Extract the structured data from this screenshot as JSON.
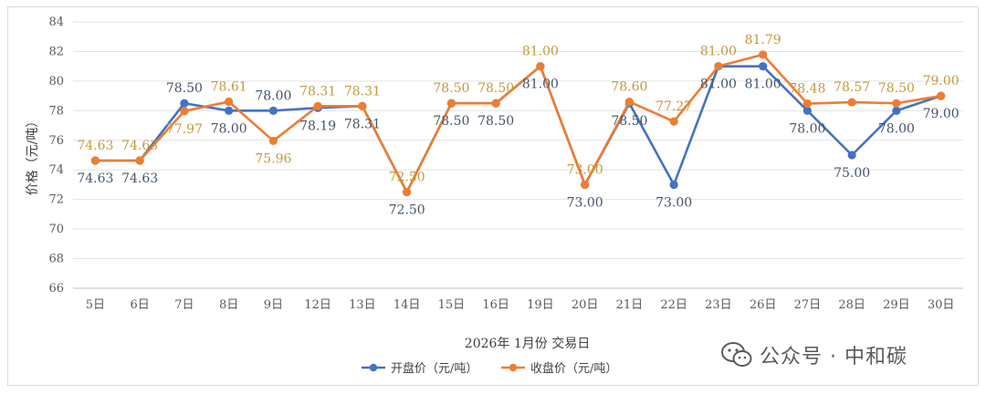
{
  "chart_data": {
    "type": "line",
    "title": "",
    "xlabel": "2026年 1月份 交易日",
    "ylabel": "价格（元/吨）",
    "ylim": [
      66,
      84
    ],
    "yticks": [
      66,
      68,
      70,
      72,
      74,
      76,
      78,
      80,
      82,
      84
    ],
    "categories": [
      "5日",
      "6日",
      "7日",
      "8日",
      "9日",
      "12日",
      "13日",
      "14日",
      "15日",
      "16日",
      "19日",
      "20日",
      "21日",
      "22日",
      "23日",
      "26日",
      "27日",
      "28日",
      "29日",
      "30日"
    ],
    "grid": true,
    "legend_position": "bottom",
    "series": [
      {
        "name": "开盘价（元/吨）",
        "color": "#4472c4",
        "values": [
          74.63,
          74.63,
          78.5,
          78.0,
          78.0,
          78.19,
          78.31,
          72.5,
          78.5,
          78.5,
          81.0,
          73.0,
          78.5,
          73.0,
          81.0,
          81.0,
          78.0,
          75.0,
          78.0,
          79.0
        ],
        "labels": [
          "74.63",
          "74.63",
          "78.50",
          "78.00",
          "78.00",
          "78.19",
          "78.31",
          "72.50",
          "78.50",
          "78.50",
          "81.00",
          "73.00",
          "78.50",
          "73.00",
          "81.00",
          "81.00",
          "78.00",
          "75.00",
          "78.00",
          "79.00"
        ],
        "label_positions": [
          "below",
          "below",
          "above",
          "below",
          "above",
          "below",
          "below",
          "below",
          "below",
          "below",
          "below",
          "below",
          "below",
          "below",
          "below",
          "below",
          "below",
          "below",
          "below",
          "below"
        ]
      },
      {
        "name": "收盘价（元/吨）",
        "color": "#ed7d31",
        "values": [
          74.63,
          74.63,
          77.97,
          78.61,
          75.96,
          78.31,
          78.31,
          72.5,
          78.5,
          78.5,
          81.0,
          73.0,
          78.6,
          77.27,
          81.0,
          81.79,
          78.48,
          78.57,
          78.5,
          79.0
        ],
        "labels": [
          "74.63",
          "74.63",
          "77.97",
          "78.61",
          "75.96",
          "78.31",
          "78.31",
          "72.50",
          "78.50",
          "78.50",
          "81.00",
          "73.00",
          "78.60",
          "77.27",
          "81.00",
          "81.79",
          "78.48",
          "78.57",
          "78.50",
          "79.00"
        ],
        "label_positions": [
          "above",
          "above",
          "below",
          "above",
          "below",
          "above",
          "above",
          "above",
          "above",
          "above",
          "above",
          "above",
          "above",
          "above",
          "above",
          "above",
          "above",
          "above",
          "above",
          "above"
        ]
      }
    ]
  },
  "watermark": {
    "icon": "wechat-icon",
    "text": "公众号 · 中和碳"
  }
}
